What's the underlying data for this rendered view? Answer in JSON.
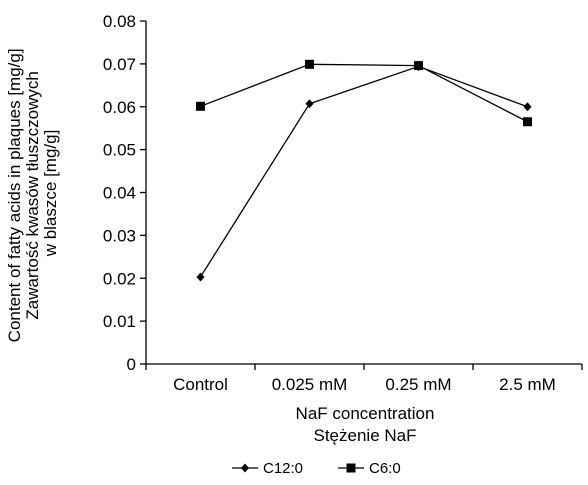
{
  "chart_data": {
    "type": "line",
    "title": "",
    "categories": [
      "Control",
      "0.025 mM",
      "0.25 mM",
      "2.5 mM"
    ],
    "series": [
      {
        "name": "C12:0",
        "marker": "diamond",
        "color": "#000000",
        "values": [
          0.0203,
          0.0607,
          0.0694,
          0.06
        ]
      },
      {
        "name": "C6:0",
        "marker": "square",
        "color": "#000000",
        "values": [
          0.0601,
          0.0699,
          0.0696,
          0.0565
        ]
      }
    ],
    "xlabel": [
      "NaF concentration",
      "Stężenie NaF"
    ],
    "ylabel": [
      "Content of fatty acids in plaques [mg/g]",
      "Zawartość kwasów tłuszczowych",
      "w blaszce [mg/g]"
    ],
    "ylim": [
      0,
      0.08
    ],
    "yticks": [
      "0",
      "0.01",
      "0.02",
      "0.03",
      "0.04",
      "0.05",
      "0.06",
      "0.07",
      "0.08"
    ],
    "grid": false,
    "legend": "bottom"
  }
}
